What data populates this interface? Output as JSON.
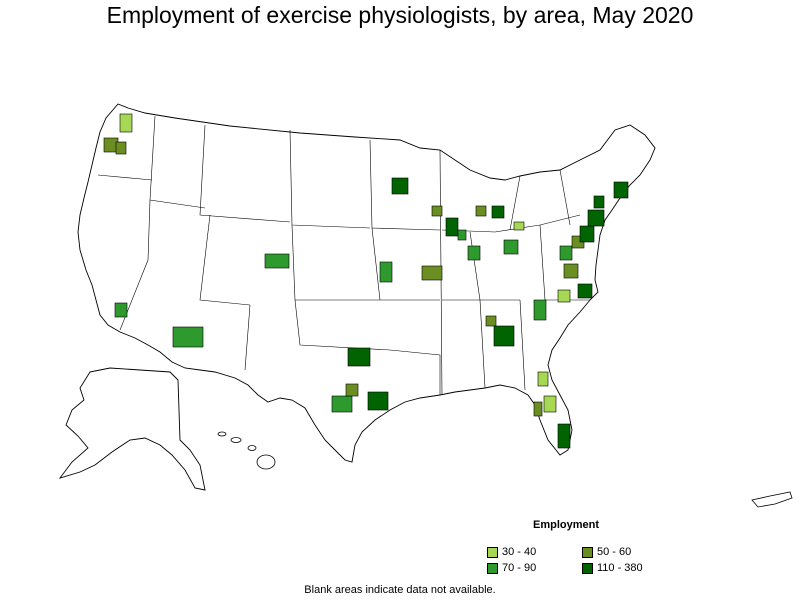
{
  "title": "Employment of exercise physiologists, by area, May 2020",
  "legend": {
    "title": "Employment",
    "items": [
      {
        "label": "30 - 40",
        "color": "#a6d854"
      },
      {
        "label": "50 - 60",
        "color": "#6b8e23"
      },
      {
        "label": "70 - 90",
        "color": "#2e9a2e"
      },
      {
        "label": "110 - 380",
        "color": "#006400"
      }
    ]
  },
  "footnote": "Blank areas indicate data not available."
}
